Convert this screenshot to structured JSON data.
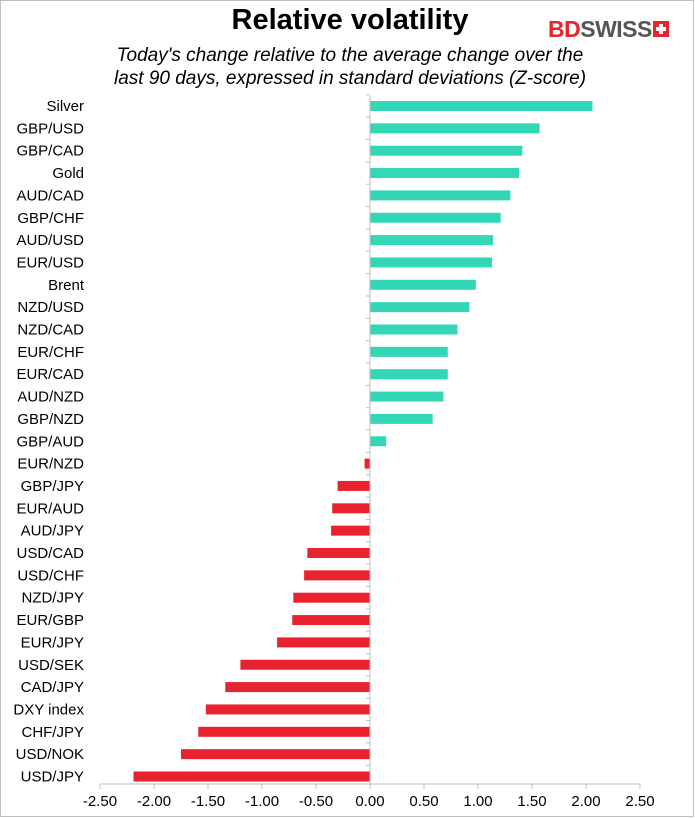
{
  "header": {
    "title": "Relative volatility",
    "subtitle_line1": "Today's change relative to the  average change over the",
    "subtitle_line2": "last 90 days, expressed in standard deviations (Z-score)",
    "logo_bd": "BD",
    "logo_swiss": "SWISS"
  },
  "colors": {
    "positive": "#33d6b5",
    "negative": "#e8232f",
    "axis": "#bfbfbf",
    "logo_red": "#e8232f"
  },
  "chart_data": {
    "type": "bar",
    "orientation": "horizontal",
    "title": "Relative volatility",
    "subtitle": "Today's change relative to the  average change over the last 90 days, expressed in standard deviations (Z-score)",
    "xlabel": "",
    "ylabel": "",
    "xlim": [
      -2.5,
      2.5
    ],
    "x_ticks": [
      "-2.50",
      "-2.00",
      "-1.50",
      "-1.00",
      "-0.50",
      "0.00",
      "0.50",
      "1.00",
      "1.50",
      "2.00",
      "2.50"
    ],
    "grid": false,
    "legend": "none",
    "categories": [
      "Silver",
      "GBP/USD",
      "GBP/CAD",
      "Gold",
      "AUD/CAD",
      "GBP/CHF",
      "AUD/USD",
      "EUR/USD",
      "Brent",
      "NZD/USD",
      "NZD/CAD",
      "EUR/CHF",
      "EUR/CAD",
      "AUD/NZD",
      "GBP/NZD",
      "GBP/AUD",
      "EUR/NZD",
      "GBP/JPY",
      "EUR/AUD",
      "AUD/JPY",
      "USD/CAD",
      "USD/CHF",
      "NZD/JPY",
      "EUR/GBP",
      "EUR/JPY",
      "USD/SEK",
      "CAD/JPY",
      "DXY index",
      "CHF/JPY",
      "USD/NOK",
      "USD/JPY"
    ],
    "values": [
      2.06,
      1.57,
      1.41,
      1.38,
      1.3,
      1.21,
      1.14,
      1.13,
      0.98,
      0.92,
      0.81,
      0.72,
      0.72,
      0.68,
      0.58,
      0.15,
      -0.05,
      -0.3,
      -0.35,
      -0.36,
      -0.58,
      -0.61,
      -0.71,
      -0.72,
      -0.86,
      -1.2,
      -1.34,
      -1.52,
      -1.59,
      -1.75,
      -2.19
    ]
  }
}
